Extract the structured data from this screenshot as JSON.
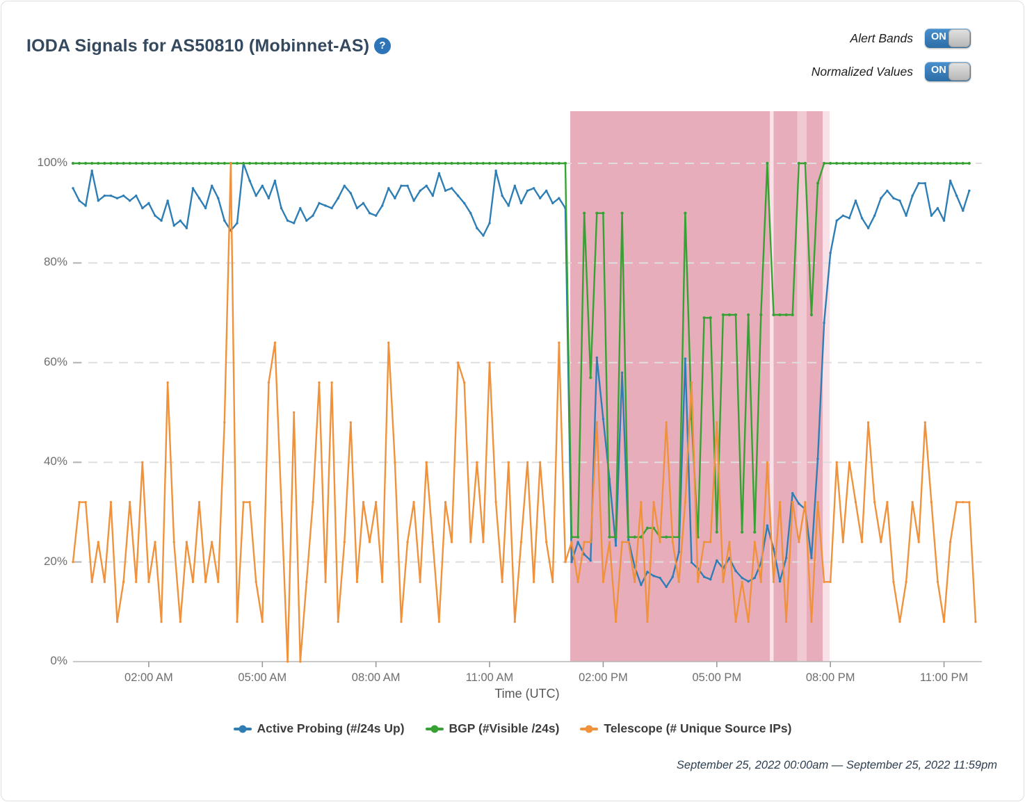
{
  "header": {
    "title": "IODA Signals for AS50810 (Mobinnet-AS)",
    "help_icon_glyph": "?"
  },
  "toggles": [
    {
      "label": "Alert Bands",
      "state": "ON"
    },
    {
      "label": "Normalized Values",
      "state": "ON"
    }
  ],
  "footer": {
    "date_range": "September 25, 2022 00:00am — September 25, 2022 11:59pm"
  },
  "colors": {
    "active_probing": "#2e7eb5",
    "bgp": "#37a233",
    "telescope": "#f0923c",
    "band_dark": "#e7adbb",
    "band_medium": "#f0c9d3",
    "band_light": "#f8e2e8",
    "grid": "#dedede",
    "axis": "#b5b5b5",
    "tick": "#9a9a9a"
  },
  "chart_data": {
    "type": "line",
    "title": "IODA Signals for AS50810 (Mobinnet-AS)",
    "xlabel": "Time (UTC)",
    "ylabel": "",
    "x_start_hour": 0,
    "x_interval_minutes": 10,
    "ylim": [
      0,
      110
    ],
    "grid": true,
    "legend_position": "bottom",
    "y_ticks": [
      "0%",
      "20%",
      "40%",
      "60%",
      "80%",
      "100%"
    ],
    "x_ticks": [
      {
        "hour": 2,
        "label": "02:00 AM"
      },
      {
        "hour": 5,
        "label": "05:00 AM"
      },
      {
        "hour": 8,
        "label": "08:00 AM"
      },
      {
        "hour": 11,
        "label": "11:00 AM"
      },
      {
        "hour": 14,
        "label": "02:00 PM"
      },
      {
        "hour": 17,
        "label": "05:00 PM"
      },
      {
        "hour": 20,
        "label": "08:00 PM"
      },
      {
        "hour": 23,
        "label": "11:00 PM"
      }
    ],
    "alert_bands": [
      {
        "start_hour": 13.13,
        "end_hour": 18.4,
        "intensity": "dark"
      },
      {
        "start_hour": 18.4,
        "end_hour": 18.5,
        "intensity": "light"
      },
      {
        "start_hour": 18.5,
        "end_hour": 19.13,
        "intensity": "dark"
      },
      {
        "start_hour": 19.13,
        "end_hour": 19.37,
        "intensity": "medium"
      },
      {
        "start_hour": 19.37,
        "end_hour": 19.8,
        "intensity": "dark"
      },
      {
        "start_hour": 19.8,
        "end_hour": 19.98,
        "intensity": "light"
      }
    ],
    "series": [
      {
        "name": "Active Probing (#/24s Up)",
        "color_key": "active_probing",
        "values": [
          95,
          92.5,
          91.5,
          98.5,
          92.5,
          93.5,
          93.5,
          93,
          93.5,
          92.5,
          93.5,
          91,
          92,
          89.5,
          88.5,
          92.5,
          87.5,
          88.5,
          87,
          95,
          93,
          91,
          95.5,
          93,
          88.5,
          86.5,
          88,
          100,
          96.5,
          93.5,
          95.5,
          93,
          96.5,
          91,
          88.5,
          88,
          91,
          88.5,
          89.5,
          92,
          91.5,
          91,
          93,
          95.5,
          94,
          91,
          92,
          90,
          89.5,
          91.5,
          95,
          93,
          95.5,
          95.5,
          92.5,
          94.5,
          95.5,
          93.5,
          98,
          94.5,
          95,
          93.5,
          92,
          90,
          87,
          85.5,
          88,
          98.5,
          93.5,
          91.5,
          95.5,
          92,
          94.5,
          95,
          93,
          94.5,
          92,
          93,
          91,
          20,
          24,
          21.5,
          20.3,
          61,
          48.7,
          36.6,
          23.3,
          58,
          24.4,
          19,
          15.4,
          18,
          17.2,
          16.8,
          15,
          17,
          22,
          60.8,
          19.9,
          18.7,
          17,
          16.5,
          20.3,
          18.7,
          20.8,
          18.2,
          16.8,
          16.1,
          16.8,
          19.8,
          27.3,
          22.6,
          16.1,
          20.8,
          33.8,
          31.7,
          30.6,
          20.8,
          40.7,
          68,
          82,
          88.5,
          89.5,
          89,
          92.5,
          89,
          87,
          89.5,
          93,
          94.5,
          93,
          92.5,
          89.5,
          93.5,
          96,
          96,
          89.5,
          91,
          88.5,
          96.5,
          93.5,
          90.5,
          94.5
        ]
      },
      {
        "name": "BGP (#Visible /24s)",
        "color_key": "bgp",
        "values": [
          100,
          100,
          100,
          100,
          100,
          100,
          100,
          100,
          100,
          100,
          100,
          100,
          100,
          100,
          100,
          100,
          100,
          100,
          100,
          100,
          100,
          100,
          100,
          100,
          100,
          100,
          100,
          100,
          100,
          100,
          100,
          100,
          100,
          100,
          100,
          100,
          100,
          100,
          100,
          100,
          100,
          100,
          100,
          100,
          100,
          100,
          100,
          100,
          100,
          100,
          100,
          100,
          100,
          100,
          100,
          100,
          100,
          100,
          100,
          100,
          100,
          100,
          100,
          100,
          100,
          100,
          100,
          100,
          100,
          100,
          100,
          100,
          100,
          100,
          100,
          100,
          100,
          100,
          100,
          25,
          25,
          90,
          57,
          90,
          90,
          25,
          25,
          90,
          25,
          25,
          25,
          26.8,
          26.8,
          25,
          25,
          25,
          25,
          90,
          48.7,
          25,
          69,
          69,
          26,
          69.6,
          69.6,
          69.6,
          26,
          69.6,
          26,
          69.6,
          100,
          69.6,
          69.6,
          69.6,
          69.6,
          100,
          100,
          69.6,
          96,
          100,
          100,
          100,
          100,
          100,
          100,
          100,
          100,
          100,
          100,
          100,
          100,
          100,
          100,
          100,
          100,
          100,
          100,
          100,
          100,
          100,
          100,
          100,
          100
        ]
      },
      {
        "name": "Telescope (# Unique Source IPs)",
        "color_key": "telescope",
        "values": [
          20,
          32,
          32,
          16,
          24,
          16,
          32,
          8,
          16,
          32,
          16,
          40,
          16,
          24,
          8,
          56,
          24,
          8,
          24,
          16,
          32,
          16,
          24,
          16,
          48,
          100,
          8,
          32,
          32,
          16,
          8,
          56,
          64,
          32,
          0,
          50,
          0,
          16,
          32,
          56,
          16,
          56,
          8,
          24,
          48,
          16,
          32,
          24,
          32,
          16,
          64,
          40,
          8,
          24,
          32,
          16,
          40,
          24,
          8,
          32,
          24,
          60,
          56,
          24,
          40,
          24,
          60,
          32,
          16,
          40,
          8,
          24,
          40,
          16,
          40,
          24,
          16,
          64,
          20,
          24,
          16,
          24,
          24,
          48,
          16,
          24,
          8,
          24,
          24,
          16,
          32,
          8,
          32,
          24,
          48,
          24,
          16,
          32,
          56,
          16,
          24,
          24,
          48,
          16,
          24,
          8,
          16,
          8,
          24,
          16,
          40,
          16,
          32,
          8,
          32,
          24,
          32,
          8,
          32,
          16,
          16,
          40,
          24,
          40,
          32,
          24,
          48,
          32,
          24,
          32,
          16,
          8,
          16,
          32,
          24,
          48,
          32,
          16,
          8,
          24,
          32,
          32,
          32,
          8
        ]
      }
    ]
  }
}
